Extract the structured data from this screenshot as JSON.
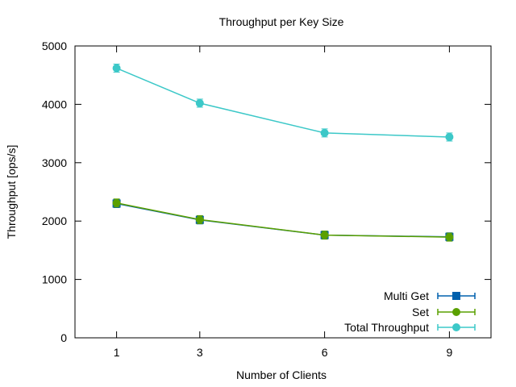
{
  "chart_data": {
    "type": "line",
    "title": "Throughput per Key Size",
    "xlabel": "Number of Clients",
    "ylabel": "Throughput [ops/s]",
    "x": [
      1,
      3,
      6,
      9
    ],
    "xticks": [
      "1",
      "3",
      "6",
      "9"
    ],
    "xlim": [
      0,
      10
    ],
    "ylim": [
      0,
      5000
    ],
    "yticks": [
      "0",
      "1000",
      "2000",
      "3000",
      "4000",
      "5000"
    ],
    "grid": false,
    "legend_position": "bottom-right",
    "series": [
      {
        "name": "Multi Get",
        "values": [
          2300,
          2020,
          1760,
          1730
        ],
        "color": "#0060ad",
        "marker": "square"
      },
      {
        "name": "Set",
        "values": [
          2310,
          2025,
          1760,
          1725
        ],
        "color": "#5aa000",
        "marker": "circle"
      },
      {
        "name": "Total Throughput",
        "values": [
          4620,
          4020,
          3510,
          3440
        ],
        "color": "#3cc8c8",
        "marker": "circle"
      }
    ]
  }
}
